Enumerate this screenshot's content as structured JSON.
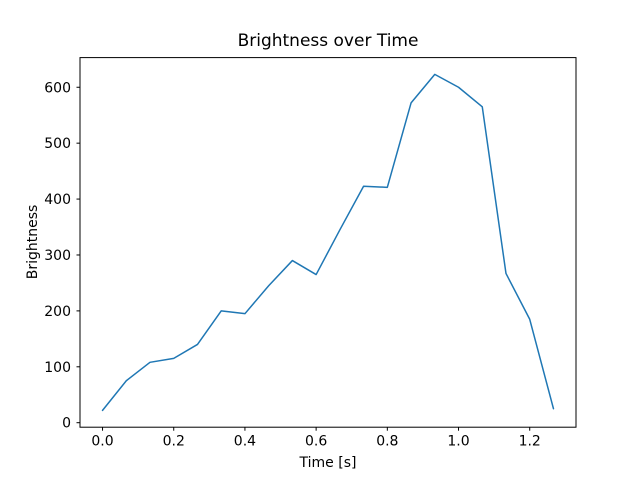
{
  "chart_data": {
    "type": "line",
    "title": "Brightness over Time",
    "xlabel": "Time [s]",
    "ylabel": "Brightness",
    "series": [
      {
        "name": "brightness",
        "color": "#1f77b4",
        "x": [
          0.0,
          0.0667,
          0.1333,
          0.2,
          0.2667,
          0.3333,
          0.4,
          0.4667,
          0.5333,
          0.6,
          0.6667,
          0.7333,
          0.8,
          0.8667,
          0.9333,
          1.0,
          1.0667,
          1.1333,
          1.2,
          1.2667
        ],
        "y": [
          22,
          75,
          108,
          115,
          140,
          200,
          195,
          245,
          290,
          265,
          345,
          423,
          421,
          572,
          623,
          600,
          565,
          267,
          185,
          25
        ]
      }
    ],
    "xticks": [
      0.0,
      0.2,
      0.4,
      0.6,
      0.8,
      1.0,
      1.2
    ],
    "yticks": [
      0,
      100,
      200,
      300,
      400,
      500,
      600
    ],
    "xlim": [
      -0.0633,
      1.33
    ],
    "ylim": [
      -8.05,
      653.05
    ],
    "grid": false,
    "legend": null,
    "line_width": 1.5,
    "spine_color": "#000000"
  }
}
